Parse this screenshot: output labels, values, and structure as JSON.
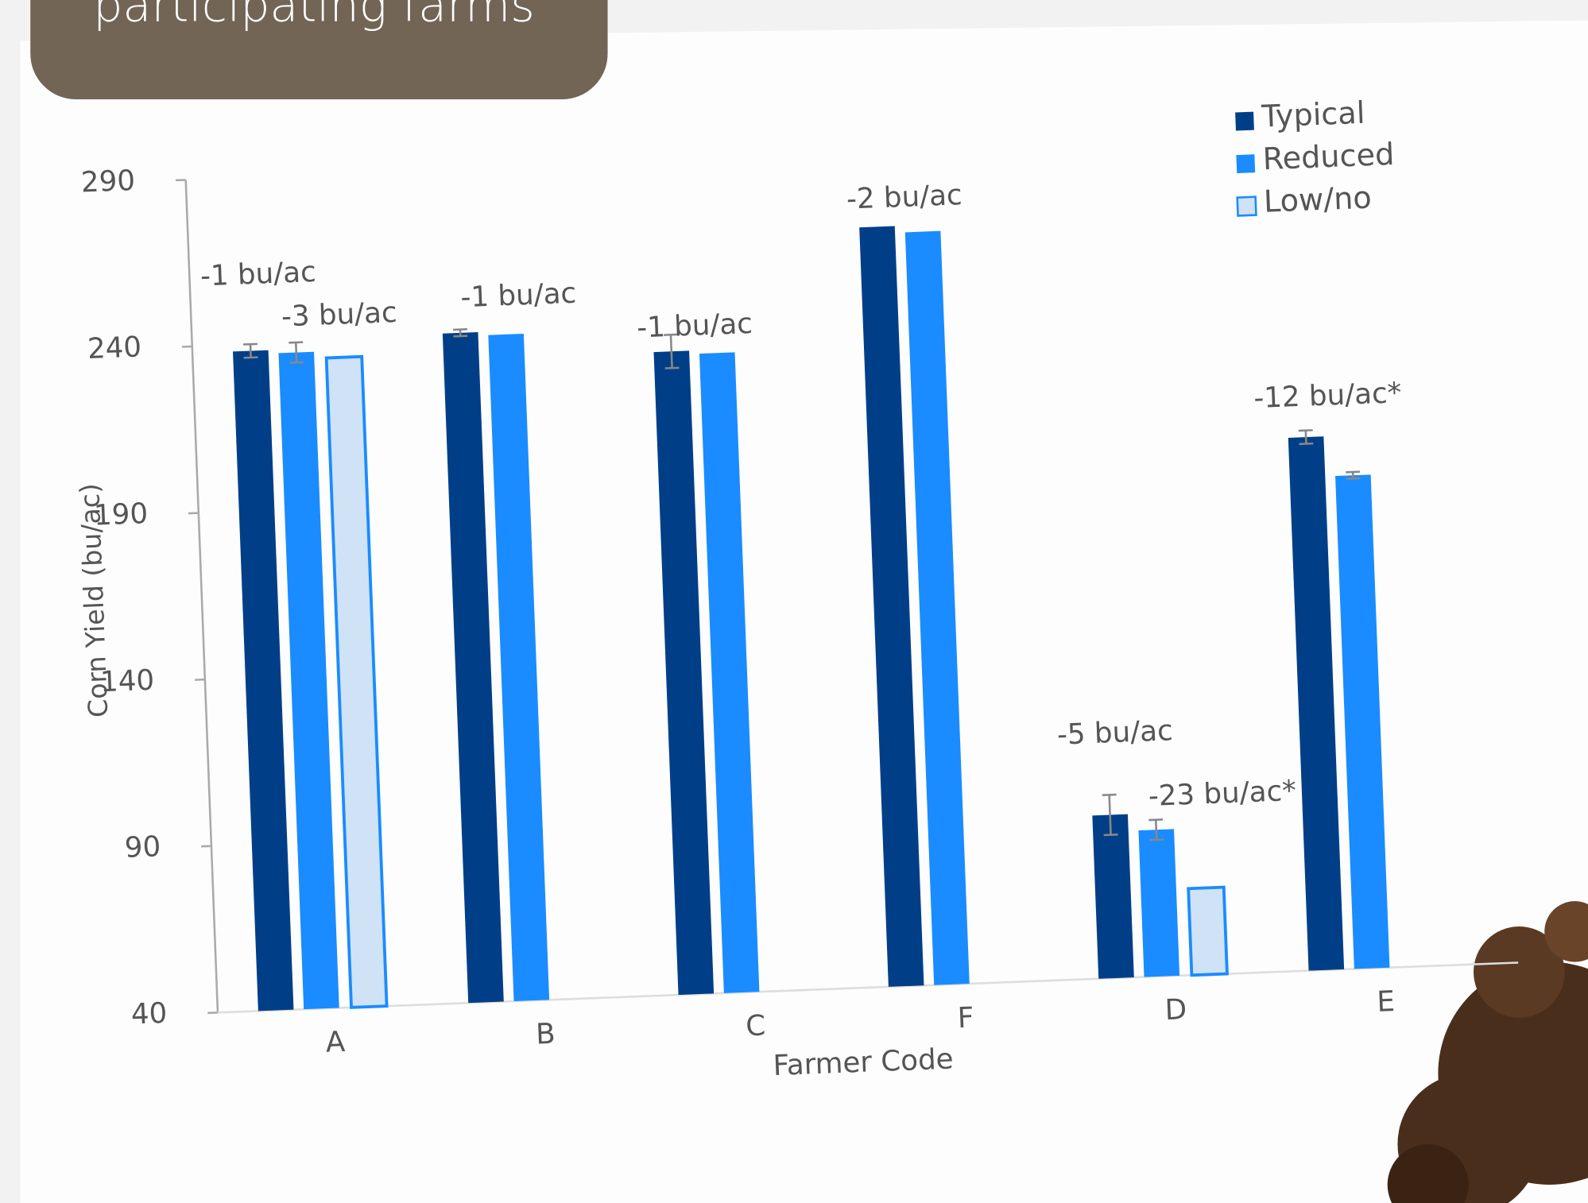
{
  "header": {
    "title": "participating farms"
  },
  "chart_data": {
    "type": "bar",
    "x_label": "Farmer Code",
    "y_label": "Corn Yield (bu/ac)",
    "categories": [
      "A",
      "B",
      "C",
      "F",
      "D",
      "E"
    ],
    "series": [
      {
        "name": "Typical",
        "color": "#003f87",
        "values": [
          238,
          241,
          233,
          268,
          89,
          200
        ],
        "errors": [
          2,
          1,
          5,
          null,
          6,
          2
        ]
      },
      {
        "name": "Reduced",
        "color": "#1a8cff",
        "values": [
          237,
          240,
          232,
          266,
          84,
          188
        ],
        "errors": [
          3,
          null,
          null,
          null,
          3,
          1
        ]
      },
      {
        "name": "Low/no",
        "color": "#cfe2f6",
        "values": [
          235,
          null,
          null,
          null,
          66,
          null
        ],
        "errors": [
          null,
          null,
          null,
          null,
          null,
          null
        ]
      }
    ],
    "annotations": [
      "-1 bu/ac",
      "-3 bu/ac",
      "-1 bu/ac",
      "-1 bu/ac",
      "-2 bu/ac",
      "-5 bu/ac",
      "-23 bu/ac*",
      "-12 bu/ac*"
    ],
    "ylim": [
      40,
      290
    ],
    "yticks": [
      40,
      90,
      140,
      190,
      240,
      290
    ]
  }
}
